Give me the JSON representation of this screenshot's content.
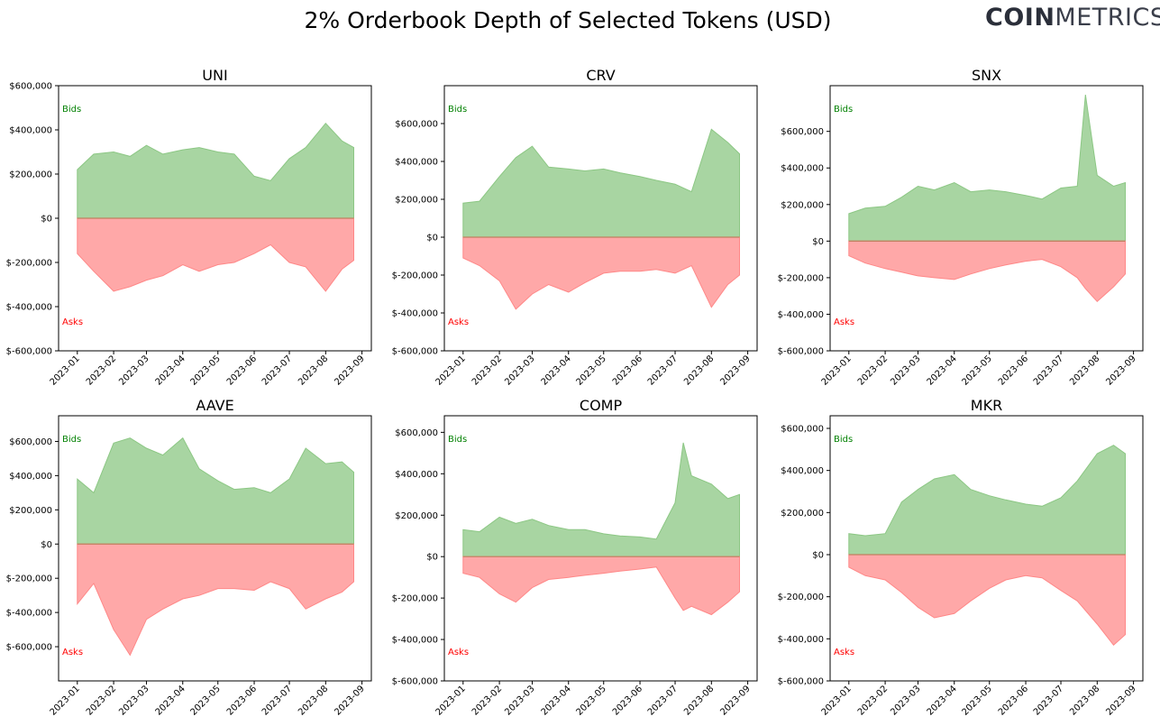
{
  "title": "2% Orderbook Depth of Selected Tokens (USD)",
  "logo": {
    "bold": "COIN",
    "thin": "METRICS"
  },
  "colors": {
    "bids": "#a8d5a2",
    "bids_line": "#8cc784",
    "asks": "#ffa8a8",
    "asks_line": "#ff8888",
    "zero_line": "#c08060",
    "bids_text": "#008000",
    "asks_text": "#ff0000"
  },
  "chart_data": [
    {
      "type": "area",
      "title": "UNI",
      "bid_label": "Bids",
      "ask_label": "Asks",
      "ylim": [
        -600000,
        600000
      ],
      "yticks": [
        -600000,
        -400000,
        -200000,
        0,
        200000,
        400000,
        600000
      ],
      "ytick_labels": [
        "$-600,000",
        "$-400,000",
        "$-200,000",
        "$0",
        "$200,000",
        "$400,000",
        "$600,000"
      ],
      "xticks": [
        "2023-01",
        "2023-02",
        "2023-03",
        "2023-04",
        "2023-05",
        "2023-06",
        "2023-07",
        "2023-08",
        "2023-09"
      ],
      "x": [
        "2023-01-01",
        "2023-01-15",
        "2023-02-01",
        "2023-02-15",
        "2023-03-01",
        "2023-03-15",
        "2023-04-01",
        "2023-04-15",
        "2023-05-01",
        "2023-05-15",
        "2023-06-01",
        "2023-06-15",
        "2023-07-01",
        "2023-07-15",
        "2023-08-01",
        "2023-08-15",
        "2023-08-25"
      ],
      "bids": [
        220000,
        290000,
        300000,
        280000,
        330000,
        290000,
        310000,
        320000,
        300000,
        290000,
        190000,
        170000,
        270000,
        320000,
        430000,
        350000,
        320000
      ],
      "asks": [
        -160000,
        -240000,
        -330000,
        -310000,
        -280000,
        -260000,
        -210000,
        -240000,
        -210000,
        -200000,
        -160000,
        -120000,
        -200000,
        -220000,
        -330000,
        -230000,
        -190000
      ]
    },
    {
      "type": "area",
      "title": "CRV",
      "bid_label": "Bids",
      "ask_label": "Asks",
      "ylim": [
        -600000,
        800000
      ],
      "yticks": [
        -600000,
        -400000,
        -200000,
        0,
        200000,
        400000,
        600000
      ],
      "ytick_labels": [
        "$-600,000",
        "$-400,000",
        "$-200,000",
        "$0",
        "$200,000",
        "$400,000",
        "$600,000"
      ],
      "xticks": [
        "2023-01",
        "2023-02",
        "2023-03",
        "2023-04",
        "2023-05",
        "2023-06",
        "2023-07",
        "2023-08",
        "2023-09"
      ],
      "x": [
        "2023-01-01",
        "2023-01-15",
        "2023-02-01",
        "2023-02-15",
        "2023-03-01",
        "2023-03-15",
        "2023-04-01",
        "2023-04-15",
        "2023-05-01",
        "2023-05-15",
        "2023-06-01",
        "2023-06-15",
        "2023-07-01",
        "2023-07-15",
        "2023-08-01",
        "2023-08-15",
        "2023-08-25"
      ],
      "bids": [
        180000,
        190000,
        320000,
        420000,
        480000,
        370000,
        360000,
        350000,
        360000,
        340000,
        320000,
        300000,
        280000,
        240000,
        570000,
        500000,
        440000
      ],
      "asks": [
        -110000,
        -150000,
        -230000,
        -380000,
        -300000,
        -250000,
        -290000,
        -240000,
        -190000,
        -180000,
        -180000,
        -170000,
        -190000,
        -150000,
        -370000,
        -250000,
        -200000
      ]
    },
    {
      "type": "area",
      "title": "SNX",
      "bid_label": "Bids",
      "ask_label": "Asks",
      "ylim": [
        -600000,
        850000
      ],
      "yticks": [
        -600000,
        -400000,
        -200000,
        0,
        200000,
        400000,
        600000
      ],
      "ytick_labels": [
        "$-600,000",
        "$-400,000",
        "$-200,000",
        "$0",
        "$200,000",
        "$400,000",
        "$600,000"
      ],
      "xticks": [
        "2023-01",
        "2023-02",
        "2023-03",
        "2023-04",
        "2023-05",
        "2023-06",
        "2023-07",
        "2023-08",
        "2023-09"
      ],
      "x": [
        "2023-01-01",
        "2023-01-15",
        "2023-02-01",
        "2023-02-15",
        "2023-03-01",
        "2023-03-15",
        "2023-04-01",
        "2023-04-15",
        "2023-05-01",
        "2023-05-15",
        "2023-06-01",
        "2023-06-15",
        "2023-07-01",
        "2023-07-15",
        "2023-07-22",
        "2023-08-01",
        "2023-08-15",
        "2023-08-25"
      ],
      "bids": [
        150000,
        180000,
        190000,
        240000,
        300000,
        280000,
        320000,
        270000,
        280000,
        270000,
        250000,
        230000,
        290000,
        300000,
        800000,
        360000,
        300000,
        320000
      ],
      "asks": [
        -80000,
        -120000,
        -150000,
        -170000,
        -190000,
        -200000,
        -210000,
        -180000,
        -150000,
        -130000,
        -110000,
        -100000,
        -140000,
        -200000,
        -260000,
        -330000,
        -250000,
        -180000
      ]
    },
    {
      "type": "area",
      "title": "AAVE",
      "bid_label": "Bids",
      "ask_label": "Asks",
      "ylim": [
        -800000,
        750000
      ],
      "yticks": [
        -600000,
        -400000,
        -200000,
        0,
        200000,
        400000,
        600000
      ],
      "ytick_labels": [
        "$-600,000",
        "$-400,000",
        "$-200,000",
        "$0",
        "$200,000",
        "$400,000",
        "$600,000"
      ],
      "xticks": [
        "2023-01",
        "2023-02",
        "2023-03",
        "2023-04",
        "2023-05",
        "2023-06",
        "2023-07",
        "2023-08",
        "2023-09"
      ],
      "x": [
        "2023-01-01",
        "2023-01-15",
        "2023-02-01",
        "2023-02-15",
        "2023-03-01",
        "2023-03-15",
        "2023-04-01",
        "2023-04-15",
        "2023-05-01",
        "2023-05-15",
        "2023-06-01",
        "2023-06-15",
        "2023-07-01",
        "2023-07-15",
        "2023-08-01",
        "2023-08-15",
        "2023-08-25"
      ],
      "bids": [
        380000,
        300000,
        590000,
        620000,
        560000,
        520000,
        620000,
        440000,
        370000,
        320000,
        330000,
        300000,
        380000,
        560000,
        470000,
        480000,
        420000
      ],
      "asks": [
        -350000,
        -230000,
        -500000,
        -650000,
        -440000,
        -380000,
        -320000,
        -300000,
        -260000,
        -260000,
        -270000,
        -220000,
        -260000,
        -380000,
        -320000,
        -280000,
        -220000
      ]
    },
    {
      "type": "area",
      "title": "COMP",
      "bid_label": "Bids",
      "ask_label": "Asks",
      "ylim": [
        -600000,
        680000
      ],
      "yticks": [
        -600000,
        -400000,
        -200000,
        0,
        200000,
        400000,
        600000
      ],
      "ytick_labels": [
        "$-600,000",
        "$-400,000",
        "$-200,000",
        "$0",
        "$200,000",
        "$400,000",
        "$600,000"
      ],
      "xticks": [
        "2023-01",
        "2023-02",
        "2023-03",
        "2023-04",
        "2023-05",
        "2023-06",
        "2023-07",
        "2023-08",
        "2023-09"
      ],
      "x": [
        "2023-01-01",
        "2023-01-15",
        "2023-02-01",
        "2023-02-15",
        "2023-03-01",
        "2023-03-15",
        "2023-04-01",
        "2023-04-15",
        "2023-05-01",
        "2023-05-15",
        "2023-06-01",
        "2023-06-15",
        "2023-07-01",
        "2023-07-08",
        "2023-07-15",
        "2023-08-01",
        "2023-08-15",
        "2023-08-25"
      ],
      "bids": [
        130000,
        120000,
        190000,
        160000,
        180000,
        150000,
        130000,
        130000,
        110000,
        100000,
        95000,
        85000,
        260000,
        550000,
        390000,
        350000,
        280000,
        300000
      ],
      "asks": [
        -80000,
        -100000,
        -180000,
        -220000,
        -150000,
        -110000,
        -100000,
        -90000,
        -80000,
        -70000,
        -60000,
        -50000,
        -200000,
        -260000,
        -240000,
        -280000,
        -220000,
        -170000
      ]
    },
    {
      "type": "area",
      "title": "MKR",
      "bid_label": "Bids",
      "ask_label": "Asks",
      "ylim": [
        -600000,
        660000
      ],
      "yticks": [
        -600000,
        -400000,
        -200000,
        0,
        200000,
        400000,
        600000
      ],
      "ytick_labels": [
        "$-600,000",
        "$-400,000",
        "$-200,000",
        "$0",
        "$200,000",
        "$400,000",
        "$600,000"
      ],
      "xticks": [
        "2023-01",
        "2023-02",
        "2023-03",
        "2023-04",
        "2023-05",
        "2023-06",
        "2023-07",
        "2023-08",
        "2023-09"
      ],
      "x": [
        "2023-01-01",
        "2023-01-15",
        "2023-02-01",
        "2023-02-15",
        "2023-03-01",
        "2023-03-15",
        "2023-04-01",
        "2023-04-15",
        "2023-05-01",
        "2023-05-15",
        "2023-06-01",
        "2023-06-15",
        "2023-07-01",
        "2023-07-15",
        "2023-08-01",
        "2023-08-15",
        "2023-08-25"
      ],
      "bids": [
        100000,
        90000,
        100000,
        250000,
        310000,
        360000,
        380000,
        310000,
        280000,
        260000,
        240000,
        230000,
        270000,
        350000,
        480000,
        520000,
        480000
      ],
      "asks": [
        -60000,
        -100000,
        -120000,
        -180000,
        -250000,
        -300000,
        -280000,
        -220000,
        -160000,
        -120000,
        -100000,
        -110000,
        -170000,
        -220000,
        -330000,
        -430000,
        -380000
      ]
    }
  ]
}
